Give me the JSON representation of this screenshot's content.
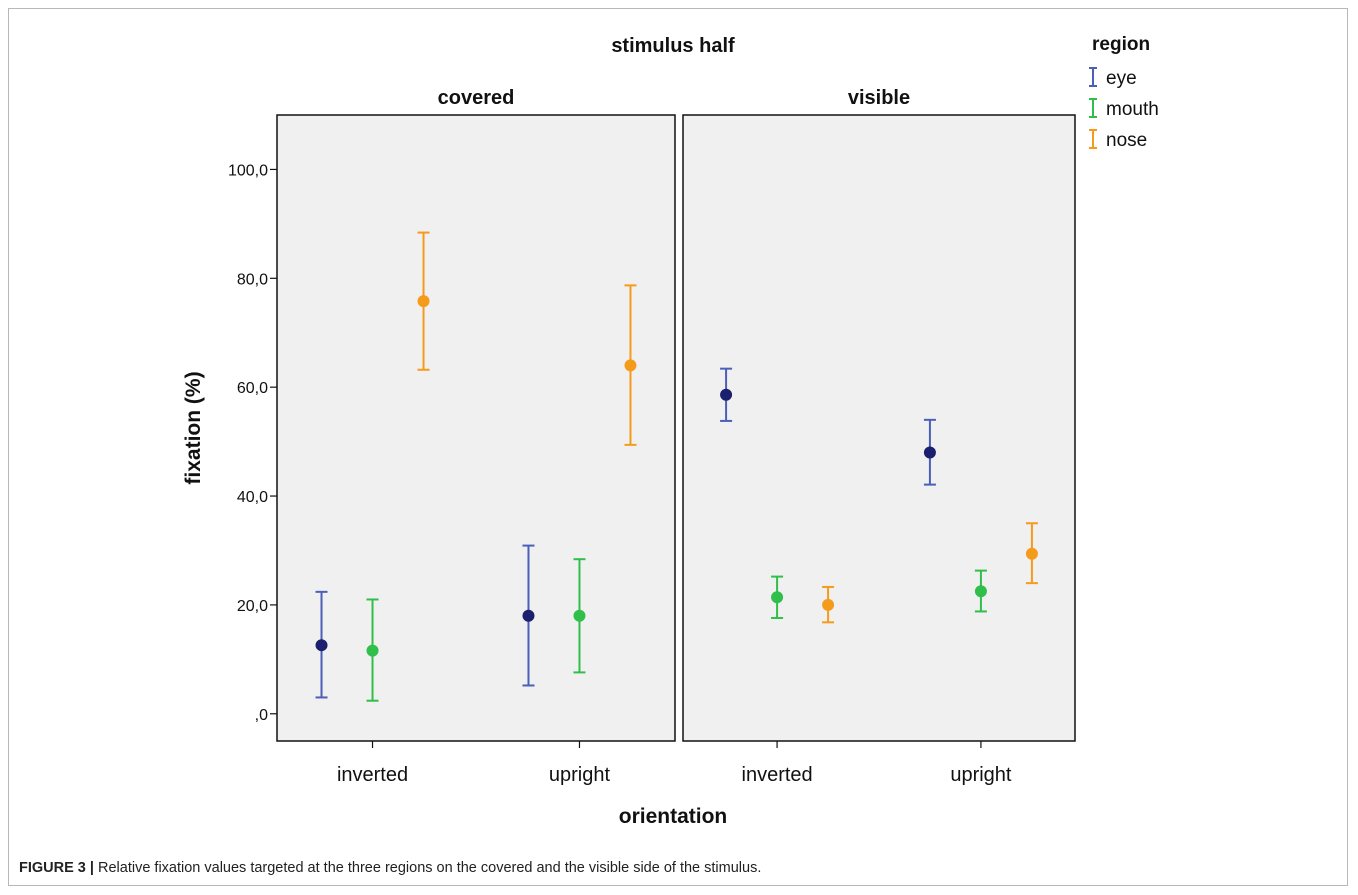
{
  "caption": {
    "label": "FIGURE 3 |",
    "text": " Relative fixation values targeted at the three regions on the covered and the visible side of the stimulus."
  },
  "colors": {
    "eye_marker": "#1a1f6e",
    "eye_bar": "#4a5fb8",
    "mouth": "#2fbf4a",
    "nose": "#f59b1c",
    "panel_bg": "#f0f0f0"
  },
  "chart_data": {
    "type": "scatter",
    "subtype": "errorbar",
    "title": "stimulus half",
    "xlabel": "orientation",
    "ylabel": "fixation (%)",
    "ylim": [
      -5,
      110
    ],
    "yticks": [
      0,
      20,
      40,
      60,
      80,
      100
    ],
    "ytick_labels": [
      ",0",
      "20,0",
      "40,0",
      "60,0",
      "80,0",
      "100,0"
    ],
    "grid": false,
    "legend": {
      "title": "region",
      "position": "top-right",
      "entries": [
        "eye",
        "mouth",
        "nose"
      ]
    },
    "categories": [
      "inverted",
      "upright"
    ],
    "panels": [
      {
        "name": "covered",
        "groups": [
          {
            "category": "inverted",
            "points": [
              {
                "region": "eye",
                "mean": 12.6,
                "low": 3.0,
                "high": 22.4
              },
              {
                "region": "mouth",
                "mean": 11.6,
                "low": 2.4,
                "high": 21.0
              },
              {
                "region": "nose",
                "mean": 75.8,
                "low": 63.2,
                "high": 88.4
              }
            ]
          },
          {
            "category": "upright",
            "points": [
              {
                "region": "eye",
                "mean": 18.0,
                "low": 5.2,
                "high": 30.9
              },
              {
                "region": "mouth",
                "mean": 18.0,
                "low": 7.6,
                "high": 28.4
              },
              {
                "region": "nose",
                "mean": 64.0,
                "low": 49.4,
                "high": 78.7
              }
            ]
          }
        ]
      },
      {
        "name": "visible",
        "groups": [
          {
            "category": "inverted",
            "points": [
              {
                "region": "eye",
                "mean": 58.6,
                "low": 53.8,
                "high": 63.4
              },
              {
                "region": "mouth",
                "mean": 21.4,
                "low": 17.6,
                "high": 25.2
              },
              {
                "region": "nose",
                "mean": 20.0,
                "low": 16.8,
                "high": 23.3
              }
            ]
          },
          {
            "category": "upright",
            "points": [
              {
                "region": "eye",
                "mean": 48.0,
                "low": 42.1,
                "high": 54.0
              },
              {
                "region": "mouth",
                "mean": 22.5,
                "low": 18.8,
                "high": 26.3
              },
              {
                "region": "nose",
                "mean": 29.4,
                "low": 24.0,
                "high": 35.0
              }
            ]
          }
        ]
      }
    ]
  }
}
